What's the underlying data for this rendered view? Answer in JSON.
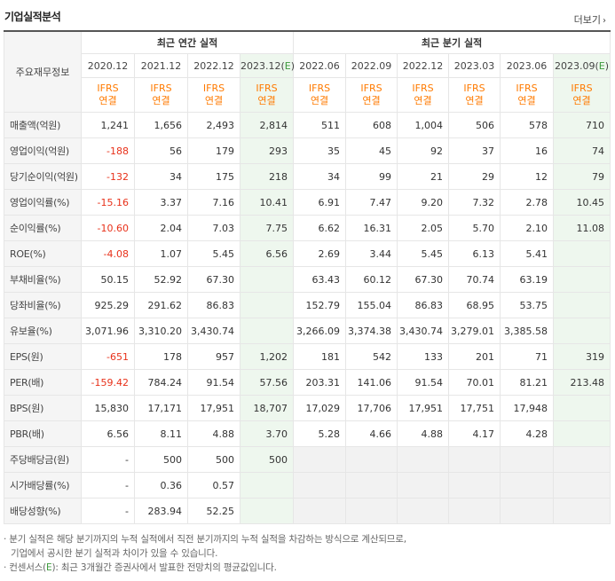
{
  "header": {
    "title": "기업실적분석",
    "more": "더보기"
  },
  "table": {
    "row_header": "주요재무정보",
    "annual_group": "최근 연간 실적",
    "quarter_group": "최근 분기 실적",
    "annual_periods": [
      "2020.12",
      "2021.12",
      "2022.12",
      "2023.12(E)"
    ],
    "quarter_periods": [
      "2022.06",
      "2022.09",
      "2022.12",
      "2023.03",
      "2023.06",
      "2023.09(E)"
    ],
    "ifrs_top": "IFRS",
    "ifrs_bottom": "연결",
    "rows": [
      {
        "label": "매출액(억원)",
        "values": [
          "1,241",
          "1,656",
          "2,493",
          "2,814",
          "511",
          "608",
          "1,004",
          "506",
          "578",
          "710"
        ]
      },
      {
        "label": "영업이익(억원)",
        "values": [
          "-188",
          "56",
          "179",
          "293",
          "35",
          "45",
          "92",
          "37",
          "16",
          "74"
        ]
      },
      {
        "label": "당기순이익(억원)",
        "values": [
          "-132",
          "34",
          "175",
          "218",
          "34",
          "99",
          "21",
          "29",
          "12",
          "79"
        ]
      },
      {
        "label": "영업이익률(%)",
        "values": [
          "-15.16",
          "3.37",
          "7.16",
          "10.41",
          "6.91",
          "7.47",
          "9.20",
          "7.32",
          "2.78",
          "10.45"
        ]
      },
      {
        "label": "순이익률(%)",
        "values": [
          "-10.60",
          "2.04",
          "7.03",
          "7.75",
          "6.62",
          "16.31",
          "2.05",
          "5.70",
          "2.10",
          "11.08"
        ]
      },
      {
        "label": "ROE(%)",
        "values": [
          "-4.08",
          "1.07",
          "5.45",
          "6.56",
          "2.69",
          "3.44",
          "5.45",
          "6.13",
          "5.41",
          ""
        ]
      },
      {
        "label": "부채비율(%)",
        "values": [
          "50.15",
          "52.92",
          "67.30",
          "",
          "63.43",
          "60.12",
          "67.30",
          "70.74",
          "63.19",
          ""
        ]
      },
      {
        "label": "당좌비율(%)",
        "values": [
          "925.29",
          "291.62",
          "86.83",
          "",
          "152.79",
          "155.04",
          "86.83",
          "68.95",
          "53.75",
          ""
        ]
      },
      {
        "label": "유보율(%)",
        "values": [
          "3,071.96",
          "3,310.20",
          "3,430.74",
          "",
          "3,266.09",
          "3,374.38",
          "3,430.74",
          "3,279.01",
          "3,385.58",
          ""
        ]
      },
      {
        "label": "EPS(원)",
        "values": [
          "-651",
          "178",
          "957",
          "1,202",
          "181",
          "542",
          "133",
          "201",
          "71",
          "319"
        ]
      },
      {
        "label": "PER(배)",
        "values": [
          "-159.42",
          "784.24",
          "91.54",
          "57.56",
          "203.31",
          "141.06",
          "91.54",
          "70.01",
          "81.21",
          "213.48"
        ]
      },
      {
        "label": "BPS(원)",
        "values": [
          "15,830",
          "17,171",
          "17,951",
          "18,707",
          "17,029",
          "17,706",
          "17,951",
          "17,751",
          "17,948",
          ""
        ]
      },
      {
        "label": "PBR(배)",
        "values": [
          "6.56",
          "8.11",
          "4.88",
          "3.70",
          "5.28",
          "4.66",
          "4.88",
          "4.17",
          "4.28",
          ""
        ]
      },
      {
        "label": "주당배당금(원)",
        "values": [
          "-",
          "500",
          "500",
          "500",
          "",
          "",
          "",
          "",
          "",
          ""
        ]
      },
      {
        "label": "시가배당률(%)",
        "values": [
          "-",
          "0.36",
          "0.57",
          "",
          "",
          "",
          "",
          "",
          "",
          ""
        ]
      },
      {
        "label": "배당성향(%)",
        "values": [
          "-",
          "283.94",
          "52.25",
          "",
          "",
          "",
          "",
          "",
          "",
          ""
        ]
      }
    ]
  },
  "notes": {
    "line1": "· 분기 실적은 해당 분기까지의 누적 실적에서 직전 분기까지의 누적 실적을 차감하는 방식으로 계산되므로,",
    "line2": "기업에서 공시한 분기 실적과 차이가 있을 수 있습니다.",
    "line3_prefix": "· 컨센서스(",
    "line3_e": "E",
    "line3_suffix": "): 최근 3개월간 증권사에서 발표한 전망치의 평균값입니다."
  },
  "colors": {
    "ifrs": "#ff7a00",
    "negative": "#e8311a",
    "estimate_bg": "#eef7ee",
    "label_bg": "#f5f5f5"
  }
}
